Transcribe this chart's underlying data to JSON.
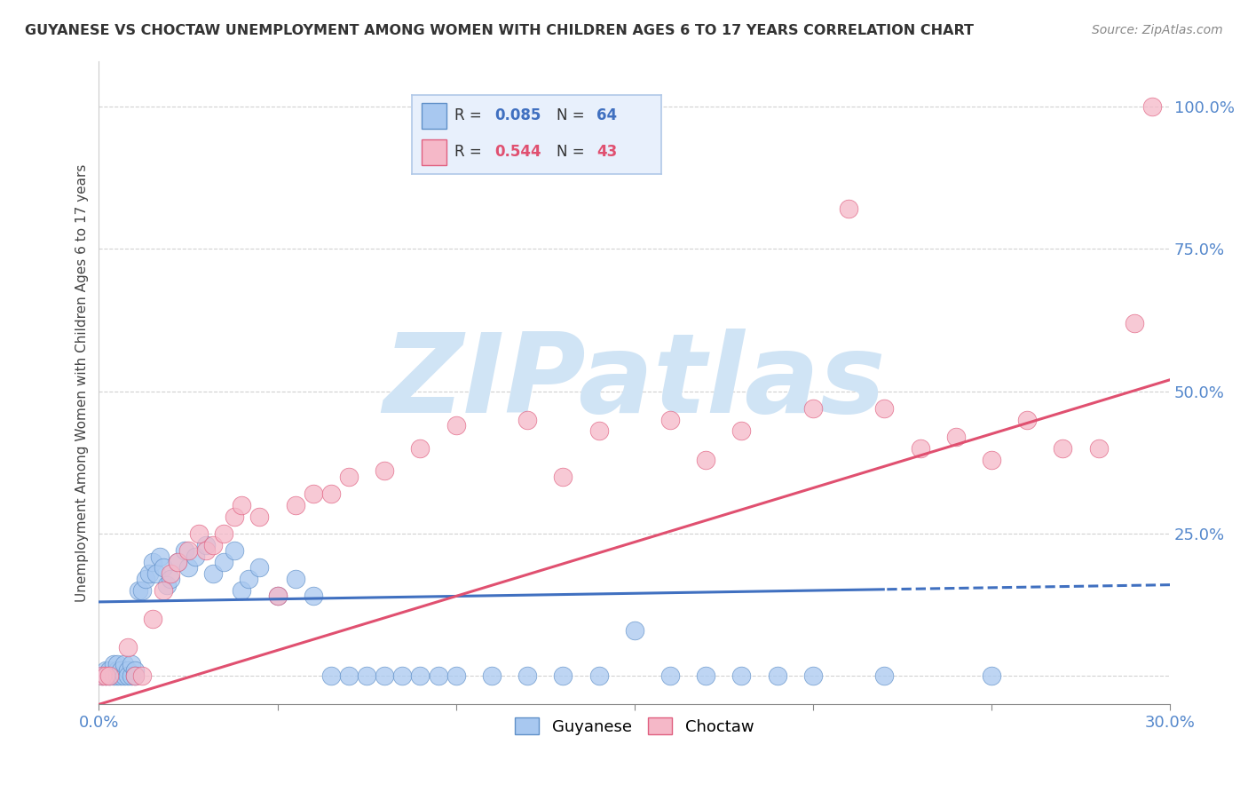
{
  "title": "GUYANESE VS CHOCTAW UNEMPLOYMENT AMONG WOMEN WITH CHILDREN AGES 6 TO 17 YEARS CORRELATION CHART",
  "source": "Source: ZipAtlas.com",
  "ylabel": "Unemployment Among Women with Children Ages 6 to 17 years",
  "xlim": [
    0.0,
    0.3
  ],
  "ylim": [
    -0.05,
    1.08
  ],
  "yticks": [
    0.0,
    0.25,
    0.5,
    0.75,
    1.0
  ],
  "ytick_labels": [
    "",
    "25.0%",
    "50.0%",
    "75.0%",
    "100.0%"
  ],
  "xtick_positions": [
    0.0,
    0.05,
    0.1,
    0.15,
    0.2,
    0.25,
    0.3
  ],
  "xtick_labels": [
    "0.0%",
    "",
    "",
    "",
    "",
    "",
    "30.0%"
  ],
  "guyanese_R": 0.085,
  "guyanese_N": 64,
  "choctaw_R": 0.544,
  "choctaw_N": 43,
  "blue_color": "#a8c8f0",
  "pink_color": "#f5b8c8",
  "blue_edge_color": "#6090c8",
  "pink_edge_color": "#e06080",
  "blue_line_color": "#4070c0",
  "pink_line_color": "#e05070",
  "tick_color": "#5588cc",
  "watermark_color": "#d0e4f5",
  "watermark": "ZIPatlas",
  "legend_bg": "#e8f0fc",
  "legend_border": "#b0c8e8",
  "blue_trend_intercept": 0.13,
  "blue_trend_slope": 0.1,
  "pink_trend_intercept": -0.05,
  "pink_trend_slope": 1.9,
  "guyanese_x": [
    0.001,
    0.002,
    0.002,
    0.003,
    0.003,
    0.004,
    0.004,
    0.005,
    0.005,
    0.005,
    0.006,
    0.006,
    0.007,
    0.007,
    0.008,
    0.008,
    0.009,
    0.009,
    0.01,
    0.01,
    0.011,
    0.012,
    0.013,
    0.014,
    0.015,
    0.016,
    0.017,
    0.018,
    0.019,
    0.02,
    0.022,
    0.024,
    0.025,
    0.027,
    0.03,
    0.032,
    0.035,
    0.038,
    0.04,
    0.042,
    0.045,
    0.05,
    0.055,
    0.06,
    0.065,
    0.07,
    0.075,
    0.08,
    0.085,
    0.09,
    0.095,
    0.1,
    0.11,
    0.12,
    0.13,
    0.14,
    0.15,
    0.16,
    0.17,
    0.18,
    0.19,
    0.2,
    0.22,
    0.25
  ],
  "guyanese_y": [
    0.0,
    0.0,
    0.01,
    0.0,
    0.01,
    0.0,
    0.02,
    0.0,
    0.01,
    0.02,
    0.0,
    0.01,
    0.0,
    0.02,
    0.01,
    0.0,
    0.0,
    0.02,
    0.01,
    0.0,
    0.15,
    0.15,
    0.17,
    0.18,
    0.2,
    0.18,
    0.21,
    0.19,
    0.16,
    0.17,
    0.2,
    0.22,
    0.19,
    0.21,
    0.23,
    0.18,
    0.2,
    0.22,
    0.15,
    0.17,
    0.19,
    0.14,
    0.17,
    0.14,
    0.0,
    0.0,
    0.0,
    0.0,
    0.0,
    0.0,
    0.0,
    0.0,
    0.0,
    0.0,
    0.0,
    0.0,
    0.08,
    0.0,
    0.0,
    0.0,
    0.0,
    0.0,
    0.0,
    0.0
  ],
  "choctaw_x": [
    0.001,
    0.002,
    0.003,
    0.008,
    0.01,
    0.012,
    0.015,
    0.018,
    0.02,
    0.022,
    0.025,
    0.028,
    0.03,
    0.032,
    0.035,
    0.038,
    0.04,
    0.045,
    0.05,
    0.055,
    0.06,
    0.065,
    0.07,
    0.08,
    0.09,
    0.1,
    0.12,
    0.13,
    0.14,
    0.16,
    0.17,
    0.18,
    0.2,
    0.21,
    0.22,
    0.23,
    0.24,
    0.25,
    0.26,
    0.27,
    0.28,
    0.29,
    0.295
  ],
  "choctaw_y": [
    0.0,
    0.0,
    0.0,
    0.05,
    0.0,
    0.0,
    0.1,
    0.15,
    0.18,
    0.2,
    0.22,
    0.25,
    0.22,
    0.23,
    0.25,
    0.28,
    0.3,
    0.28,
    0.14,
    0.3,
    0.32,
    0.32,
    0.35,
    0.36,
    0.4,
    0.44,
    0.45,
    0.35,
    0.43,
    0.45,
    0.38,
    0.43,
    0.47,
    0.82,
    0.47,
    0.4,
    0.42,
    0.38,
    0.45,
    0.4,
    0.4,
    0.62,
    1.0
  ]
}
